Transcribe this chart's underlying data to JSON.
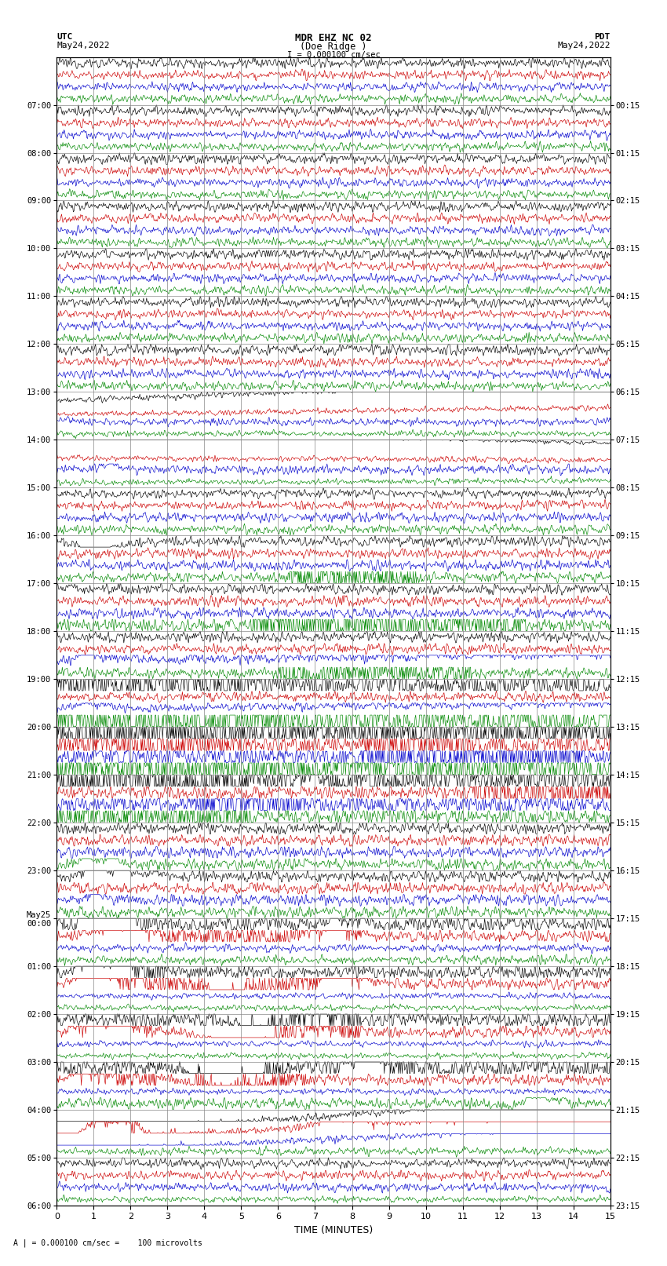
{
  "title_line1": "MDR EHZ NC 02",
  "title_line2": "(Doe Ridge )",
  "scale_label": "I = 0.000100 cm/sec",
  "utc_label": "UTC",
  "utc_date": "May24,2022",
  "pdt_label": "PDT",
  "pdt_date": "May24,2022",
  "bottom_label": "A | = 0.000100 cm/sec =    100 microvolts",
  "xlabel": "TIME (MINUTES)",
  "left_times": [
    "07:00",
    "08:00",
    "09:00",
    "10:00",
    "11:00",
    "12:00",
    "13:00",
    "14:00",
    "15:00",
    "16:00",
    "17:00",
    "18:00",
    "19:00",
    "20:00",
    "21:00",
    "22:00",
    "23:00",
    "May25\n00:00",
    "01:00",
    "02:00",
    "03:00",
    "04:00",
    "05:00",
    "06:00"
  ],
  "right_times": [
    "00:15",
    "01:15",
    "02:15",
    "03:15",
    "04:15",
    "05:15",
    "06:15",
    "07:15",
    "08:15",
    "09:15",
    "10:15",
    "11:15",
    "12:15",
    "13:15",
    "14:15",
    "15:15",
    "16:15",
    "17:15",
    "18:15",
    "19:15",
    "20:15",
    "21:15",
    "22:15",
    "23:15"
  ],
  "n_rows": 24,
  "n_cols": 15,
  "bg_color": "#ffffff",
  "grid_color": "#888888",
  "colors": [
    "black",
    "#cc0000",
    "#0000cc",
    "#008800"
  ],
  "fig_width": 8.5,
  "fig_height": 16.13
}
